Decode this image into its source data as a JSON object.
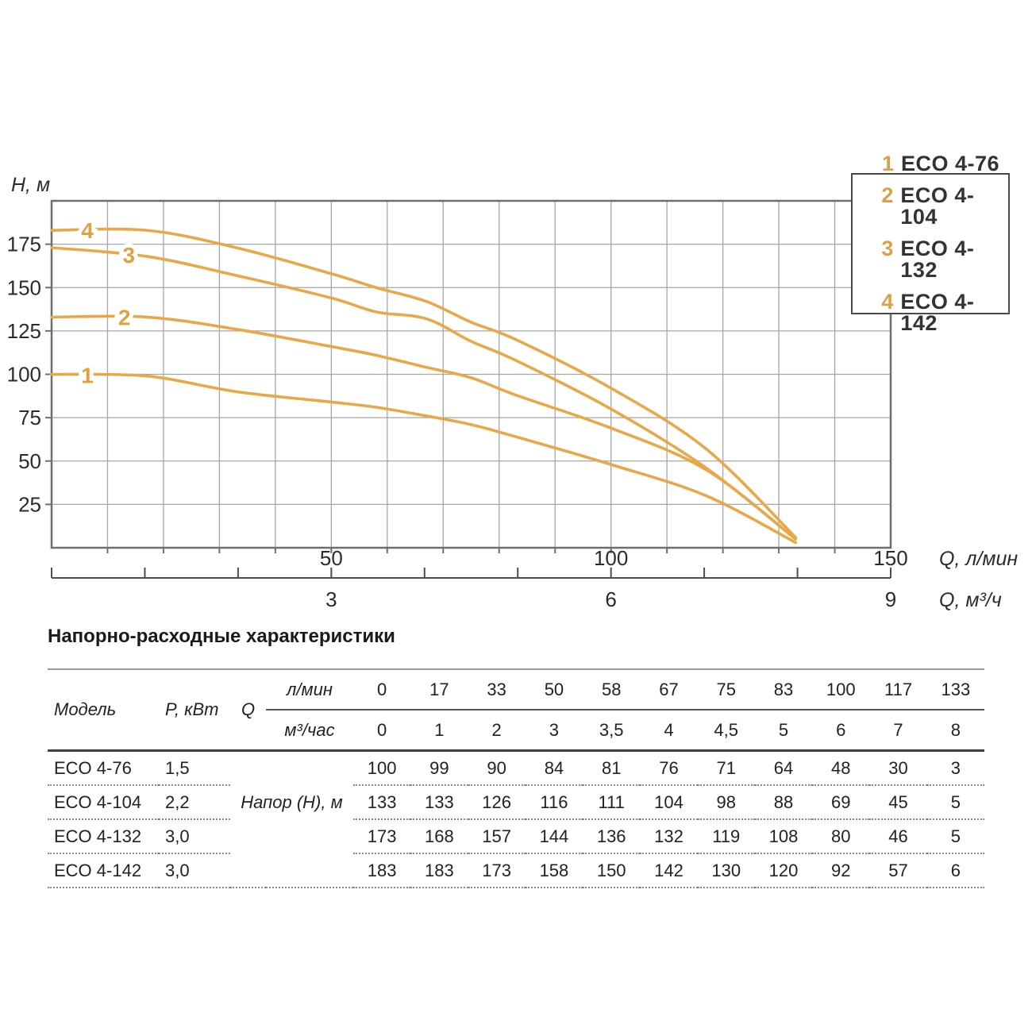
{
  "colors": {
    "curve": "#e9a748",
    "curve_label": "#e2a041",
    "legend_number": "#d9a14c",
    "grid": "#a6a6a6",
    "plot_border": "#6e6e6e",
    "axis_ruler": "#4d4d4d",
    "text": "#2b2b2b"
  },
  "chart": {
    "y_axis_label": "H, м",
    "y_ticks": [
      175,
      150,
      125,
      100,
      75,
      50,
      25
    ],
    "x_axis_lmin": {
      "tick_values": [
        50,
        100,
        150
      ],
      "unit_label": "Q, л/мин"
    },
    "x_axis_m3h": {
      "tick_values": [
        3,
        6,
        9
      ],
      "unit_label": "Q, м³/ч"
    },
    "legend": [
      {
        "num": "1",
        "label": "ECO 4-76"
      },
      {
        "num": "2",
        "label": "ECO 4-104"
      },
      {
        "num": "3",
        "label": "ECO 4-132"
      },
      {
        "num": "4",
        "label": "ECO 4-142"
      }
    ]
  },
  "chart_data": {
    "type": "line",
    "x": [
      0,
      17,
      33,
      50,
      58,
      67,
      75,
      83,
      100,
      117,
      133
    ],
    "x_unit_primary": "Q, л/мин",
    "x_m3h": [
      0,
      1,
      2,
      3,
      3.5,
      4,
      4.5,
      5,
      6,
      7,
      8
    ],
    "x_unit_secondary": "Q, м³/ч",
    "series": [
      {
        "name": "ECO 4-76",
        "marker": "1",
        "values": [
          100,
          99,
          90,
          84,
          81,
          76,
          71,
          64,
          48,
          30,
          3
        ]
      },
      {
        "name": "ECO 4-104",
        "marker": "2",
        "values": [
          133,
          133,
          126,
          116,
          111,
          104,
          98,
          88,
          69,
          45,
          5
        ]
      },
      {
        "name": "ECO 4-132",
        "marker": "3",
        "values": [
          173,
          168,
          157,
          144,
          136,
          132,
          119,
          108,
          80,
          46,
          5
        ]
      },
      {
        "name": "ECO 4-142",
        "marker": "4",
        "values": [
          183,
          183,
          173,
          158,
          150,
          142,
          130,
          120,
          92,
          57,
          6
        ]
      }
    ],
    "ylabel": "H, м",
    "ylim": [
      0,
      200
    ],
    "xlim": [
      0,
      150
    ],
    "y_grid_step": 25,
    "x_grid_step": 10,
    "grid": true,
    "legend_position": "top-right box"
  },
  "table": {
    "title": "Напорно-расходные характеристики",
    "col_model": "Модель",
    "col_power": "P, кВт",
    "col_q": "Q",
    "unit_lmin": "л/мин",
    "unit_m3h": "м³/час",
    "q_lmin": [
      "0",
      "17",
      "33",
      "50",
      "58",
      "67",
      "75",
      "83",
      "100",
      "117",
      "133"
    ],
    "q_m3h": [
      "0",
      "1",
      "2",
      "3",
      "3,5",
      "4",
      "4,5",
      "5",
      "6",
      "7",
      "8"
    ],
    "napor_label": "Напор (H), м",
    "rows": [
      {
        "model": "ECO 4-76",
        "power": "1,5",
        "values": [
          "100",
          "99",
          "90",
          "84",
          "81",
          "76",
          "71",
          "64",
          "48",
          "30",
          "3"
        ]
      },
      {
        "model": "ECO 4-104",
        "power": "2,2",
        "values": [
          "133",
          "133",
          "126",
          "116",
          "111",
          "104",
          "98",
          "88",
          "69",
          "45",
          "5"
        ]
      },
      {
        "model": "ECO 4-132",
        "power": "3,0",
        "values": [
          "173",
          "168",
          "157",
          "144",
          "136",
          "132",
          "119",
          "108",
          "80",
          "46",
          "5"
        ]
      },
      {
        "model": "ECO 4-142",
        "power": "3,0",
        "values": [
          "183",
          "183",
          "173",
          "158",
          "150",
          "142",
          "130",
          "120",
          "92",
          "57",
          "6"
        ]
      }
    ]
  }
}
